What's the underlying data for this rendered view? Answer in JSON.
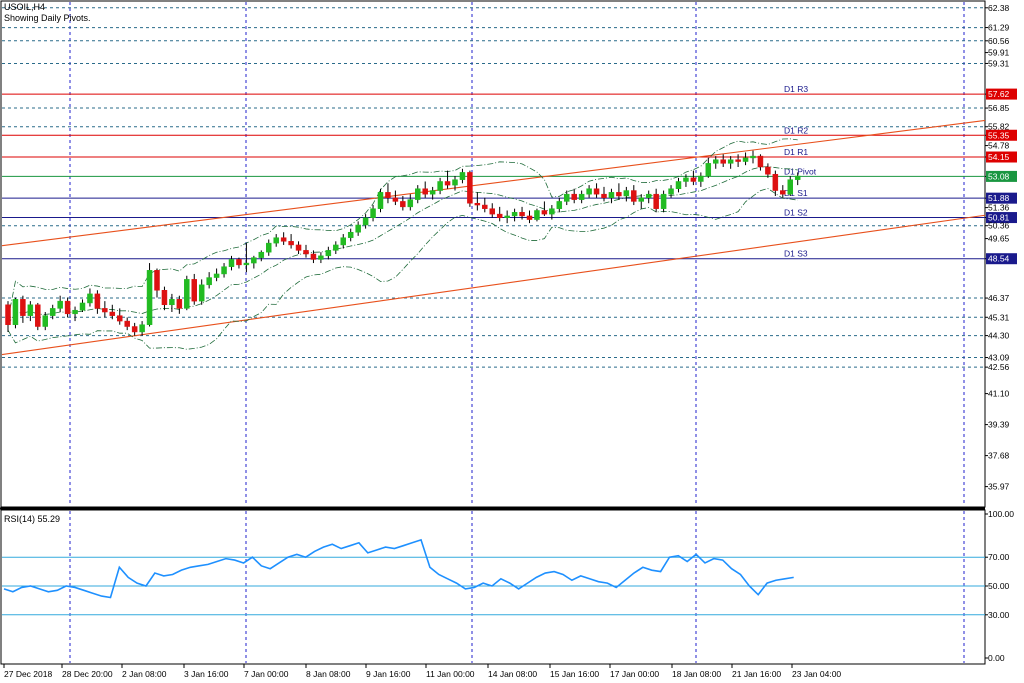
{
  "header": {
    "symbol_label": "USOIL,H4",
    "subtitle": "Showing Daily Pivots."
  },
  "rsi": {
    "label": "RSI(14) 55.29",
    "levels": [
      70,
      50,
      30
    ],
    "ticks": [
      "100.00",
      "70.00",
      "50.00",
      "30.00",
      "0.00"
    ]
  },
  "chart_data": {
    "type": "candlestick",
    "symbol": "USOIL",
    "timeframe": "H4",
    "ylim": [
      34.9,
      62.7
    ],
    "y_ticks": [
      "62.38",
      "61.29",
      "60.56",
      "59.91",
      "59.31",
      "57.62",
      "56.85",
      "55.82",
      "55.35",
      "54.78",
      "54.15",
      "53.08",
      "51.88",
      "51.36",
      "50.81",
      "50.36",
      "49.65",
      "48.54",
      "46.37",
      "45.31",
      "44.30",
      "43.09",
      "42.56",
      "41.10",
      "39.39",
      "37.68",
      "35.97"
    ],
    "x_labels": [
      "27 Dec 2018",
      "28 Dec 20:00",
      "2 Jan 08:00",
      "3 Jan 16:00",
      "7 Jan 00:00",
      "8 Jan 08:00",
      "9 Jan 16:00",
      "11 Jan 00:00",
      "14 Jan 08:00",
      "15 Jan 16:00",
      "17 Jan 00:00",
      "18 Jan 08:00",
      "21 Jan 16:00",
      "23 Jan 04:00"
    ],
    "pivots": [
      {
        "name": "D1 R3",
        "value": 57.62,
        "color": "#dd0000"
      },
      {
        "name": "D1 R2",
        "value": 55.35,
        "color": "#dd0000"
      },
      {
        "name": "D1 R1",
        "value": 54.15,
        "color": "#dd0000"
      },
      {
        "name": "D1 Pivot",
        "value": 53.08,
        "color": "#1a9641"
      },
      {
        "name": "D1 S1",
        "value": 51.88,
        "color": "#1a1a8c"
      },
      {
        "name": "D1 S2",
        "value": 50.81,
        "color": "#1a1a8c"
      },
      {
        "name": "D1 S3",
        "value": 48.54,
        "color": "#1a1a8c"
      }
    ],
    "current_price": 53.08,
    "channel": {
      "upper": [
        [
          0,
          49.3
        ],
        [
          170,
          58.2
        ]
      ],
      "lower": [
        [
          0,
          43.3
        ],
        [
          170,
          53.2
        ]
      ]
    },
    "candles": [
      [
        46.0,
        46.2,
        44.5,
        44.9
      ],
      [
        44.9,
        46.4,
        44.7,
        46.3
      ],
      [
        46.3,
        46.5,
        45.0,
        45.4
      ],
      [
        45.4,
        46.2,
        45.1,
        46.0
      ],
      [
        46.0,
        46.1,
        44.6,
        44.8
      ],
      [
        44.8,
        45.6,
        44.6,
        45.4
      ],
      [
        45.4,
        46.0,
        45.2,
        45.8
      ],
      [
        45.8,
        46.5,
        45.6,
        46.2
      ],
      [
        46.2,
        46.4,
        45.3,
        45.5
      ],
      [
        45.5,
        45.9,
        45.1,
        45.7
      ],
      [
        45.7,
        46.3,
        45.6,
        46.1
      ],
      [
        46.1,
        46.9,
        45.9,
        46.6
      ],
      [
        46.6,
        46.8,
        45.5,
        45.8
      ],
      [
        45.8,
        46.2,
        45.3,
        45.6
      ],
      [
        45.6,
        46.0,
        45.2,
        45.4
      ],
      [
        45.4,
        45.8,
        44.9,
        45.1
      ],
      [
        45.1,
        45.3,
        44.6,
        44.8
      ],
      [
        44.8,
        45.0,
        44.3,
        44.5
      ],
      [
        44.5,
        45.1,
        44.3,
        44.9
      ],
      [
        44.9,
        48.3,
        44.8,
        47.9
      ],
      [
        47.9,
        48.0,
        46.4,
        46.8
      ],
      [
        46.8,
        47.0,
        45.7,
        46.0
      ],
      [
        46.0,
        46.6,
        45.6,
        46.3
      ],
      [
        46.3,
        46.5,
        45.5,
        45.8
      ],
      [
        45.8,
        47.6,
        45.7,
        47.4
      ],
      [
        47.4,
        47.7,
        46.0,
        46.2
      ],
      [
        46.2,
        47.4,
        46.0,
        47.1
      ],
      [
        47.1,
        47.8,
        46.9,
        47.5
      ],
      [
        47.5,
        48.0,
        47.3,
        47.7
      ],
      [
        47.7,
        48.3,
        47.5,
        48.1
      ],
      [
        48.1,
        48.7,
        47.9,
        48.5
      ],
      [
        48.5,
        48.6,
        48.0,
        48.2
      ],
      [
        48.2,
        49.4,
        47.8,
        48.3
      ],
      [
        48.3,
        48.7,
        48.0,
        48.6
      ],
      [
        48.6,
        49.0,
        48.4,
        48.9
      ],
      [
        48.9,
        49.6,
        48.7,
        49.4
      ],
      [
        49.4,
        49.9,
        49.2,
        49.7
      ],
      [
        49.7,
        50.0,
        49.3,
        49.5
      ],
      [
        49.5,
        49.9,
        49.1,
        49.3
      ],
      [
        49.3,
        49.5,
        48.8,
        49.0
      ],
      [
        49.0,
        49.3,
        48.6,
        48.8
      ],
      [
        48.8,
        49.0,
        48.3,
        48.5
      ],
      [
        48.5,
        48.9,
        48.3,
        48.7
      ],
      [
        48.7,
        49.2,
        48.5,
        49.0
      ],
      [
        49.0,
        49.5,
        48.8,
        49.3
      ],
      [
        49.3,
        49.9,
        49.1,
        49.7
      ],
      [
        49.7,
        50.2,
        49.5,
        50.0
      ],
      [
        50.0,
        50.6,
        49.8,
        50.4
      ],
      [
        50.4,
        51.0,
        50.2,
        50.8
      ],
      [
        50.8,
        51.5,
        50.6,
        51.3
      ],
      [
        51.3,
        52.4,
        51.1,
        52.2
      ],
      [
        52.2,
        52.7,
        51.6,
        51.9
      ],
      [
        51.9,
        52.3,
        51.5,
        51.7
      ],
      [
        51.7,
        52.0,
        51.2,
        51.4
      ],
      [
        51.4,
        52.1,
        51.2,
        51.8
      ],
      [
        51.8,
        52.6,
        51.6,
        52.4
      ],
      [
        52.4,
        52.8,
        51.9,
        52.1
      ],
      [
        52.1,
        52.5,
        51.8,
        52.3
      ],
      [
        52.3,
        53.0,
        52.1,
        52.8
      ],
      [
        52.8,
        53.4,
        52.4,
        52.6
      ],
      [
        52.6,
        53.1,
        52.3,
        52.9
      ],
      [
        52.9,
        53.5,
        52.7,
        53.3
      ],
      [
        53.3,
        53.4,
        51.4,
        51.6
      ],
      [
        51.6,
        52.2,
        51.2,
        51.5
      ],
      [
        51.5,
        51.9,
        51.1,
        51.3
      ],
      [
        51.3,
        51.6,
        50.8,
        51.0
      ],
      [
        51.0,
        51.4,
        50.6,
        50.8
      ],
      [
        50.8,
        51.2,
        50.5,
        50.9
      ],
      [
        50.9,
        51.3,
        50.6,
        51.1
      ],
      [
        51.1,
        51.4,
        50.7,
        50.9
      ],
      [
        50.9,
        51.2,
        50.5,
        50.7
      ],
      [
        50.7,
        51.3,
        50.6,
        51.2
      ],
      [
        51.2,
        51.7,
        50.9,
        51.0
      ],
      [
        51.0,
        51.5,
        50.7,
        51.3
      ],
      [
        51.3,
        51.9,
        51.1,
        51.7
      ],
      [
        51.7,
        52.3,
        51.5,
        52.1
      ],
      [
        52.1,
        52.4,
        51.6,
        51.8
      ],
      [
        51.8,
        52.3,
        51.6,
        52.1
      ],
      [
        52.1,
        52.6,
        51.9,
        52.4
      ],
      [
        52.4,
        52.7,
        51.9,
        52.1
      ],
      [
        52.1,
        52.5,
        51.7,
        51.9
      ],
      [
        51.9,
        52.4,
        51.6,
        52.2
      ],
      [
        52.2,
        52.7,
        51.8,
        52.0
      ],
      [
        52.0,
        52.5,
        51.7,
        52.3
      ],
      [
        52.3,
        52.6,
        51.5,
        51.7
      ],
      [
        51.7,
        52.1,
        51.3,
        51.9
      ],
      [
        51.9,
        52.3,
        51.6,
        52.1
      ],
      [
        52.1,
        52.4,
        51.1,
        51.3
      ],
      [
        51.3,
        52.3,
        51.1,
        52.1
      ],
      [
        52.1,
        52.6,
        51.9,
        52.4
      ],
      [
        52.4,
        53.0,
        52.2,
        52.8
      ],
      [
        52.8,
        53.2,
        52.5,
        53.0
      ],
      [
        53.0,
        53.4,
        52.6,
        52.8
      ],
      [
        52.8,
        53.3,
        52.5,
        53.1
      ],
      [
        53.1,
        54.1,
        53.0,
        53.8
      ],
      [
        53.8,
        54.2,
        53.5,
        54.0
      ],
      [
        54.0,
        54.3,
        53.6,
        53.8
      ],
      [
        53.8,
        54.2,
        53.5,
        54.0
      ],
      [
        54.0,
        54.3,
        53.6,
        53.9
      ],
      [
        53.9,
        54.4,
        53.7,
        54.1
      ],
      [
        54.1,
        54.5,
        53.8,
        54.2
      ],
      [
        54.2,
        54.3,
        53.4,
        53.6
      ],
      [
        53.6,
        53.8,
        53.0,
        53.2
      ],
      [
        53.2,
        53.4,
        52.0,
        52.3
      ],
      [
        52.3,
        52.6,
        51.9,
        52.1
      ],
      [
        52.1,
        53.1,
        52.0,
        52.9
      ],
      [
        52.9,
        53.3,
        52.6,
        53.1
      ]
    ],
    "rsi_values": [
      48,
      46,
      49,
      50,
      48,
      46,
      47,
      50,
      49,
      47,
      45,
      43,
      42,
      63,
      56,
      52,
      50,
      59,
      57,
      58,
      61,
      63,
      64,
      65,
      67,
      69,
      68,
      66,
      70,
      64,
      62,
      66,
      70,
      72,
      70,
      74,
      77,
      79,
      76,
      78,
      80,
      73,
      75,
      77,
      76,
      78,
      80,
      82,
      63,
      58,
      55,
      52,
      48,
      49,
      52,
      50,
      55,
      52,
      48,
      52,
      56,
      59,
      60,
      58,
      54,
      57,
      55,
      53,
      52,
      49,
      54,
      59,
      63,
      61,
      60,
      70,
      71,
      67,
      72,
      66,
      69,
      68,
      62,
      58,
      50,
      44,
      52,
      54,
      55,
      56
    ]
  }
}
